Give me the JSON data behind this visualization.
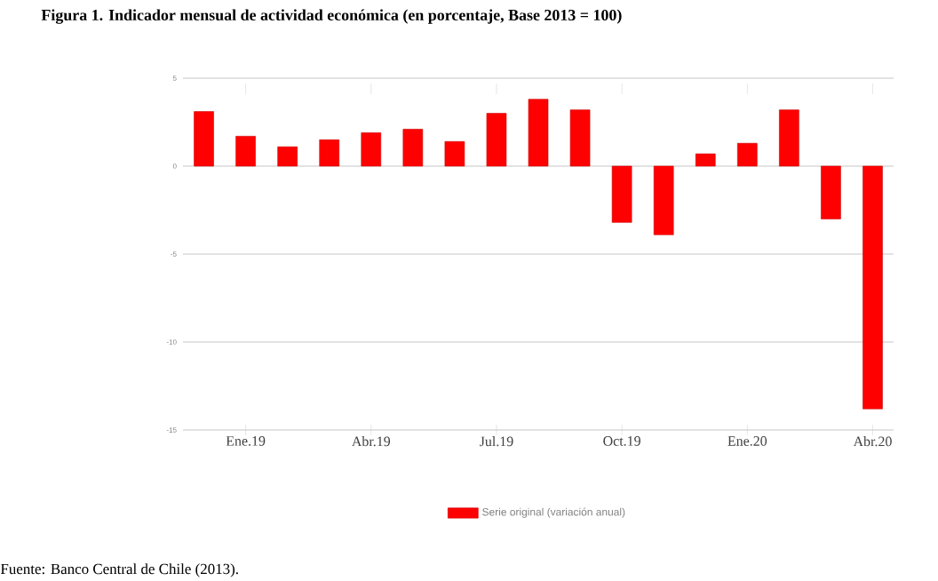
{
  "chart_data": {
    "type": "bar",
    "title": "Figura 1. Indicador mensual de actividad económica (en porcentaje, Base 2013 = 100)",
    "categories": [
      null,
      "Ene.19",
      null,
      null,
      "Abr.19",
      null,
      null,
      "Jul.19",
      null,
      null,
      "Oct.19",
      null,
      null,
      "Ene.20",
      null,
      null,
      "Abr.20"
    ],
    "series": [
      {
        "name": "Serie original (variación anual)",
        "color": "#ff0000",
        "values": [
          3.1,
          1.7,
          1.1,
          1.5,
          1.9,
          2.1,
          1.4,
          3.0,
          3.8,
          3.2,
          -3.2,
          -3.9,
          0.7,
          1.3,
          3.2,
          -3.0,
          -13.8
        ]
      }
    ],
    "ylim": [
      -15,
      5
    ],
    "yticks": [
      -15,
      -10,
      -5,
      0,
      5
    ],
    "grid": "y",
    "legend": "bottom",
    "annotations": [
      "Fuente: Banco Central de Chile (2013)."
    ]
  }
}
